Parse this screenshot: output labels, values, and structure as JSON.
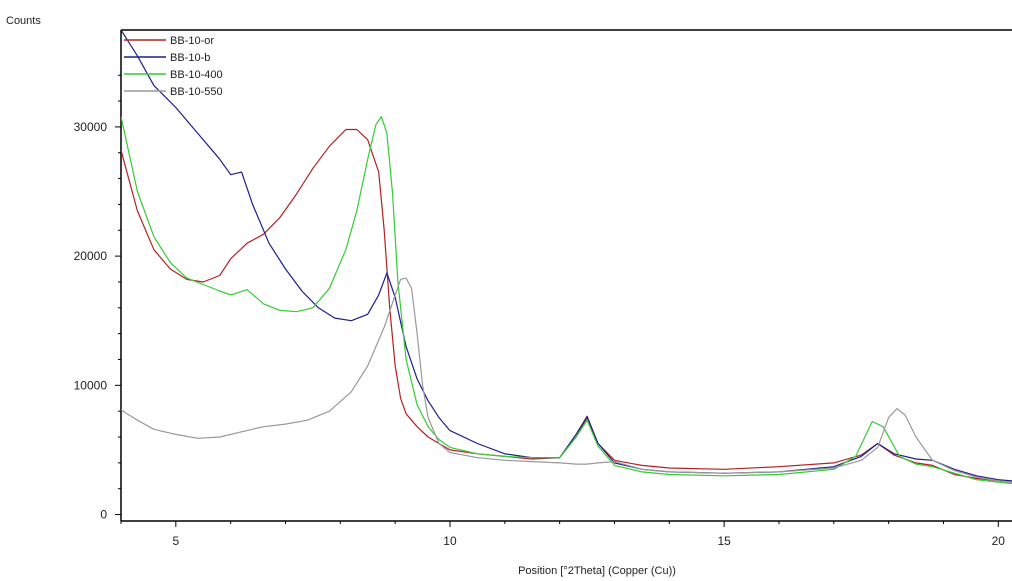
{
  "chart_data": {
    "type": "line",
    "title": "",
    "ylabel": "Counts",
    "xlabel": "Position [°2Theta] (Copper (Cu))",
    "xlim": [
      4.0,
      20.25
    ],
    "ylim": [
      -500,
      37500
    ],
    "x_ticks": [
      5,
      10,
      15,
      20
    ],
    "y_ticks": [
      0,
      10000,
      20000,
      30000
    ],
    "grid": false,
    "legend_position": "top-left",
    "series": [
      {
        "name": "BB-10-or",
        "color": "#b22222",
        "x": [
          4.0,
          4.3,
          4.6,
          4.9,
          5.2,
          5.5,
          5.8,
          6.0,
          6.3,
          6.6,
          6.9,
          7.2,
          7.5,
          7.8,
          8.1,
          8.3,
          8.5,
          8.7,
          8.8,
          8.9,
          9.0,
          9.1,
          9.2,
          9.4,
          9.6,
          9.8,
          10.0,
          10.5,
          11.0,
          11.5,
          12.0,
          12.3,
          12.5,
          12.7,
          13.0,
          13.5,
          14.0,
          15.0,
          16.0,
          17.0,
          17.5,
          17.8,
          18.1,
          18.5,
          18.8,
          19.2,
          19.6,
          20.0,
          20.25
        ],
        "y": [
          28200,
          23500,
          20500,
          19000,
          18200,
          18000,
          18500,
          19800,
          21000,
          21700,
          23000,
          24800,
          26800,
          28500,
          29800,
          29800,
          29000,
          26500,
          22000,
          16000,
          11500,
          9000,
          7800,
          6800,
          6000,
          5500,
          5000,
          4700,
          4500,
          4300,
          4400,
          6000,
          7500,
          5500,
          4200,
          3800,
          3600,
          3500,
          3700,
          4000,
          4600,
          5500,
          4600,
          4000,
          3800,
          3100,
          2800,
          2600,
          2500
        ]
      },
      {
        "name": "BB-10-b",
        "color": "#1e1e8c",
        "x": [
          4.0,
          4.3,
          4.6,
          5.0,
          5.4,
          5.8,
          6.0,
          6.2,
          6.4,
          6.7,
          7.0,
          7.3,
          7.6,
          7.9,
          8.2,
          8.5,
          8.7,
          8.85,
          9.0,
          9.2,
          9.4,
          9.6,
          9.8,
          10.0,
          10.5,
          11.0,
          11.5,
          12.0,
          12.3,
          12.5,
          12.7,
          13.0,
          13.5,
          14.0,
          15.0,
          16.0,
          17.0,
          17.5,
          17.8,
          18.1,
          18.5,
          18.8,
          19.2,
          19.6,
          20.0,
          20.25
        ],
        "y": [
          37500,
          35500,
          33200,
          31500,
          29500,
          27500,
          26300,
          26500,
          24000,
          21000,
          19000,
          17300,
          16000,
          15200,
          15000,
          15500,
          17000,
          18700,
          16800,
          13000,
          10500,
          8800,
          7500,
          6500,
          5500,
          4700,
          4400,
          4400,
          6200,
          7600,
          5500,
          4000,
          3500,
          3300,
          3200,
          3300,
          3700,
          4500,
          5500,
          4700,
          4300,
          4200,
          3500,
          3000,
          2700,
          2600
        ]
      },
      {
        "name": "BB-10-400",
        "color": "#33cc33",
        "x": [
          4.0,
          4.3,
          4.6,
          4.9,
          5.2,
          5.5,
          5.8,
          6.0,
          6.3,
          6.6,
          6.9,
          7.2,
          7.5,
          7.8,
          8.1,
          8.3,
          8.5,
          8.65,
          8.75,
          8.85,
          8.95,
          9.05,
          9.2,
          9.4,
          9.6,
          9.8,
          10.0,
          10.5,
          11.0,
          11.5,
          12.0,
          12.3,
          12.5,
          12.7,
          13.0,
          13.5,
          14.0,
          15.0,
          16.0,
          17.0,
          17.4,
          17.7,
          17.9,
          18.2,
          18.5,
          18.8,
          19.2,
          19.6,
          20.0,
          20.25
        ],
        "y": [
          30800,
          25000,
          21500,
          19500,
          18300,
          17800,
          17300,
          17000,
          17400,
          16300,
          15800,
          15700,
          16000,
          17500,
          20500,
          23500,
          27500,
          30200,
          30800,
          29500,
          25000,
          18000,
          12000,
          8500,
          6800,
          5800,
          5200,
          4700,
          4500,
          4400,
          4400,
          6000,
          7300,
          5300,
          3800,
          3300,
          3100,
          3000,
          3100,
          3500,
          4500,
          7200,
          6800,
          4500,
          3900,
          3700,
          3200,
          2700,
          2500,
          2400
        ]
      },
      {
        "name": "BB-10-550",
        "color": "#999999",
        "x": [
          4.0,
          4.3,
          4.6,
          5.0,
          5.4,
          5.8,
          6.2,
          6.6,
          7.0,
          7.4,
          7.8,
          8.2,
          8.5,
          8.8,
          9.0,
          9.1,
          9.2,
          9.3,
          9.4,
          9.5,
          9.6,
          9.8,
          10.0,
          10.5,
          11.0,
          11.5,
          12.0,
          12.3,
          12.5,
          12.7,
          13.0,
          13.5,
          14.0,
          15.0,
          16.0,
          17.0,
          17.5,
          17.8,
          18.0,
          18.15,
          18.3,
          18.5,
          18.8,
          19.2,
          19.6,
          20.0,
          20.25
        ],
        "y": [
          8100,
          7300,
          6600,
          6200,
          5900,
          6000,
          6400,
          6800,
          7000,
          7300,
          8000,
          9500,
          11500,
          14500,
          17000,
          18200,
          18300,
          17500,
          14000,
          10000,
          7500,
          5500,
          4800,
          4400,
          4200,
          4100,
          4000,
          3900,
          3900,
          4000,
          4100,
          3500,
          3300,
          3200,
          3300,
          3600,
          4200,
          5200,
          7500,
          8200,
          7700,
          6000,
          4200,
          3400,
          2900,
          2600,
          2500
        ]
      }
    ]
  }
}
